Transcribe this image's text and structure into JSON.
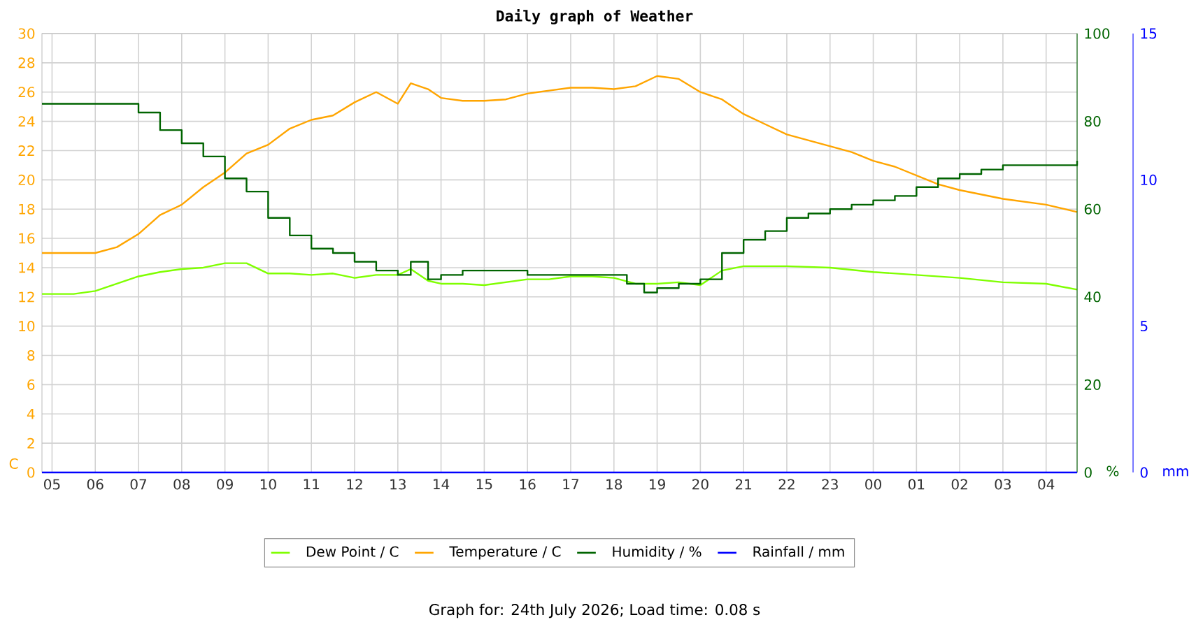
{
  "chart_data": {
    "type": "line",
    "title": "Daily graph of Weather",
    "ylabel": "C",
    "y2label": "%",
    "y3label": "mm",
    "annotations": [
      "Graph for: 24th July 2026; Load time: 0.08 s"
    ],
    "xlim": [
      "2026-07-23T04:46",
      "2026-07-24T04:43"
    ],
    "xticks": [
      {
        "value": "2026-07-23T05:00",
        "label": "05"
      },
      {
        "value": "2026-07-23T06:00",
        "label": "06"
      },
      {
        "value": "2026-07-23T07:00",
        "label": "07"
      },
      {
        "value": "2026-07-23T08:00",
        "label": "08"
      },
      {
        "value": "2026-07-23T09:00",
        "label": "09"
      },
      {
        "value": "2026-07-23T10:00",
        "label": "10"
      },
      {
        "value": "2026-07-23T11:00",
        "label": "11"
      },
      {
        "value": "2026-07-23T12:00",
        "label": "12"
      },
      {
        "value": "2026-07-23T13:00",
        "label": "13"
      },
      {
        "value": "2026-07-23T14:00",
        "label": "14"
      },
      {
        "value": "2026-07-23T15:00",
        "label": "15"
      },
      {
        "value": "2026-07-23T16:00",
        "label": "16"
      },
      {
        "value": "2026-07-23T17:00",
        "label": "17"
      },
      {
        "value": "2026-07-23T18:00",
        "label": "18"
      },
      {
        "value": "2026-07-23T19:00",
        "label": "19"
      },
      {
        "value": "2026-07-23T20:00",
        "label": "20"
      },
      {
        "value": "2026-07-23T21:00",
        "label": "21"
      },
      {
        "value": "2026-07-23T22:00",
        "label": "22"
      },
      {
        "value": "2026-07-23T23:00",
        "label": "23"
      },
      {
        "value": "2026-07-24T00:00",
        "label": "00"
      },
      {
        "value": "2026-07-24T01:00",
        "label": "01"
      },
      {
        "value": "2026-07-24T02:00",
        "label": "02"
      },
      {
        "value": "2026-07-24T03:00",
        "label": "03"
      },
      {
        "value": "2026-07-24T04:00",
        "label": "04"
      }
    ],
    "ylim": [
      0,
      30
    ],
    "yticks": [
      0,
      2,
      4,
      6,
      8,
      10,
      12,
      14,
      16,
      18,
      20,
      22,
      24,
      26,
      28,
      30
    ],
    "y2lim": [
      0,
      100
    ],
    "y2ticks": [
      0,
      20,
      40,
      60,
      80,
      100
    ],
    "y3lim": [
      0,
      15
    ],
    "y3ticks": [
      0,
      5,
      10,
      15
    ],
    "grid": true,
    "legend": "bottom",
    "series": [
      {
        "name": "Dew Point / C",
        "color": "#7fff00",
        "axis": "y",
        "x": [
          "2026-07-23T04:46",
          "2026-07-23T05:30",
          "2026-07-23T06:00",
          "2026-07-23T06:30",
          "2026-07-23T07:00",
          "2026-07-23T07:30",
          "2026-07-23T08:00",
          "2026-07-23T08:30",
          "2026-07-23T09:00",
          "2026-07-23T09:30",
          "2026-07-23T10:00",
          "2026-07-23T10:30",
          "2026-07-23T11:00",
          "2026-07-23T11:30",
          "2026-07-23T12:00",
          "2026-07-23T12:30",
          "2026-07-23T13:00",
          "2026-07-23T13:18",
          "2026-07-23T13:42",
          "2026-07-23T14:00",
          "2026-07-23T14:30",
          "2026-07-23T15:00",
          "2026-07-23T15:30",
          "2026-07-23T16:00",
          "2026-07-23T16:30",
          "2026-07-23T17:00",
          "2026-07-23T17:30",
          "2026-07-23T18:00",
          "2026-07-23T18:30",
          "2026-07-23T19:00",
          "2026-07-23T19:30",
          "2026-07-23T20:00",
          "2026-07-23T20:30",
          "2026-07-23T21:00",
          "2026-07-23T22:00",
          "2026-07-23T23:00",
          "2026-07-24T00:00",
          "2026-07-24T01:00",
          "2026-07-24T02:00",
          "2026-07-24T03:00",
          "2026-07-24T04:00",
          "2026-07-24T04:43"
        ],
        "values": [
          12.2,
          12.2,
          12.4,
          12.9,
          13.4,
          13.7,
          13.9,
          14.0,
          14.3,
          14.3,
          13.6,
          13.6,
          13.5,
          13.6,
          13.3,
          13.5,
          13.5,
          13.9,
          13.1,
          12.9,
          12.9,
          12.8,
          13.0,
          13.2,
          13.2,
          13.4,
          13.4,
          13.3,
          12.9,
          12.9,
          13.0,
          12.8,
          13.8,
          14.1,
          14.1,
          14.0,
          13.7,
          13.5,
          13.3,
          13.0,
          12.9,
          12.5
        ]
      },
      {
        "name": "Temperature / C",
        "color": "#ffa500",
        "axis": "y",
        "x": [
          "2026-07-23T04:46",
          "2026-07-23T06:00",
          "2026-07-23T06:30",
          "2026-07-23T07:00",
          "2026-07-23T07:30",
          "2026-07-23T08:00",
          "2026-07-23T08:30",
          "2026-07-23T09:00",
          "2026-07-23T09:30",
          "2026-07-23T10:00",
          "2026-07-23T10:30",
          "2026-07-23T11:00",
          "2026-07-23T11:30",
          "2026-07-23T12:00",
          "2026-07-23T12:30",
          "2026-07-23T13:00",
          "2026-07-23T13:18",
          "2026-07-23T13:42",
          "2026-07-23T14:00",
          "2026-07-23T14:30",
          "2026-07-23T15:00",
          "2026-07-23T15:30",
          "2026-07-23T16:00",
          "2026-07-23T16:30",
          "2026-07-23T17:00",
          "2026-07-23T17:30",
          "2026-07-23T18:00",
          "2026-07-23T18:30",
          "2026-07-23T19:00",
          "2026-07-23T19:30",
          "2026-07-23T20:00",
          "2026-07-23T20:30",
          "2026-07-23T21:00",
          "2026-07-23T21:30",
          "2026-07-23T22:00",
          "2026-07-23T22:30",
          "2026-07-23T23:00",
          "2026-07-23T23:30",
          "2026-07-24T00:00",
          "2026-07-24T00:30",
          "2026-07-24T01:00",
          "2026-07-24T01:30",
          "2026-07-24T02:00",
          "2026-07-24T02:30",
          "2026-07-24T03:00",
          "2026-07-24T03:30",
          "2026-07-24T04:00",
          "2026-07-24T04:43"
        ],
        "values": [
          15.0,
          15.0,
          15.4,
          16.3,
          17.6,
          18.3,
          19.5,
          20.5,
          21.8,
          22.4,
          23.5,
          24.1,
          24.4,
          25.3,
          26.0,
          25.2,
          26.6,
          26.2,
          25.6,
          25.4,
          25.4,
          25.5,
          25.9,
          26.1,
          26.3,
          26.3,
          26.2,
          26.4,
          27.1,
          26.9,
          26.0,
          25.5,
          24.5,
          23.8,
          23.1,
          22.7,
          22.3,
          21.9,
          21.3,
          20.9,
          20.3,
          19.7,
          19.3,
          19.0,
          18.7,
          18.5,
          18.3,
          17.8
        ]
      },
      {
        "name": "Humidity / %",
        "color": "#006400",
        "axis": "y2",
        "type": "step",
        "x": [
          "2026-07-23T04:46",
          "2026-07-23T06:30",
          "2026-07-23T07:00",
          "2026-07-23T07:30",
          "2026-07-23T08:00",
          "2026-07-23T08:30",
          "2026-07-23T09:00",
          "2026-07-23T09:30",
          "2026-07-23T10:00",
          "2026-07-23T10:30",
          "2026-07-23T11:00",
          "2026-07-23T11:30",
          "2026-07-23T12:00",
          "2026-07-23T12:30",
          "2026-07-23T13:00",
          "2026-07-23T13:18",
          "2026-07-23T13:42",
          "2026-07-23T14:00",
          "2026-07-23T14:30",
          "2026-07-23T15:00",
          "2026-07-23T15:30",
          "2026-07-23T16:00",
          "2026-07-23T16:30",
          "2026-07-23T17:00",
          "2026-07-23T17:30",
          "2026-07-23T18:00",
          "2026-07-23T18:18",
          "2026-07-23T18:42",
          "2026-07-23T19:00",
          "2026-07-23T19:30",
          "2026-07-23T20:00",
          "2026-07-23T20:30",
          "2026-07-23T21:00",
          "2026-07-23T21:30",
          "2026-07-23T22:00",
          "2026-07-23T22:30",
          "2026-07-23T23:00",
          "2026-07-23T23:30",
          "2026-07-24T00:00",
          "2026-07-24T00:30",
          "2026-07-24T01:00",
          "2026-07-24T01:30",
          "2026-07-24T02:00",
          "2026-07-24T02:30",
          "2026-07-24T03:00",
          "2026-07-24T03:30",
          "2026-07-24T04:00",
          "2026-07-24T04:43"
        ],
        "values": [
          84,
          84,
          82,
          78,
          75,
          72,
          67,
          64,
          58,
          54,
          51,
          50,
          48,
          46,
          45,
          48,
          44,
          45,
          46,
          46,
          46,
          45,
          45,
          45,
          45,
          45,
          43,
          41,
          42,
          43,
          44,
          50,
          53,
          55,
          58,
          59,
          60,
          61,
          62,
          63,
          65,
          67,
          68,
          69,
          70,
          70,
          70,
          71
        ]
      },
      {
        "name": "Rainfall / mm",
        "color": "#0000ff",
        "axis": "y3",
        "x": [
          "2026-07-23T04:46",
          "2026-07-24T04:43"
        ],
        "values": [
          0,
          0
        ]
      }
    ]
  }
}
